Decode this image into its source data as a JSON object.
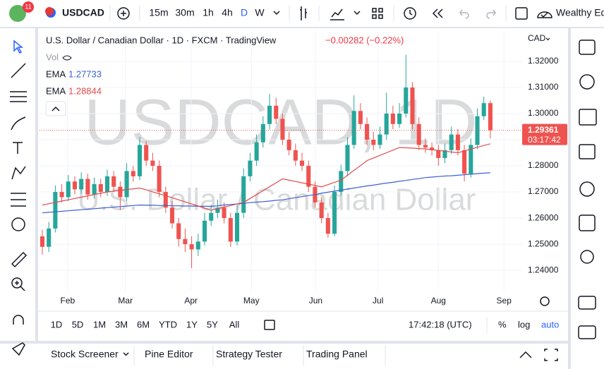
{
  "toolbar": {
    "badge": "11",
    "symbol": "USDCAD",
    "intervals": [
      "15m",
      "30m",
      "1h",
      "4h",
      "D",
      "W"
    ],
    "layout_name": "Wealthy Ed"
  },
  "legend": {
    "title": "U.S. Dollar / Canadian Dollar · 1D · FXCM · TradingView",
    "change": "−0.00282 (−0.22%)",
    "vol": "Vol",
    "ema_label": "EMA"
  },
  "currency": "CAD",
  "watermark": {
    "symbol": "USDCAD, 1D",
    "name": "U.S. Dollar / Canadian Dollar"
  },
  "countdown": "03:17:42",
  "ranges": [
    "1D",
    "5D",
    "1M",
    "3M",
    "6M",
    "YTD",
    "1Y",
    "5Y",
    "All"
  ],
  "clock": "17:42:18 (UTC)",
  "scale_options": [
    "%",
    "log",
    "auto"
  ],
  "tabs": [
    "Stock Screener",
    "Pine Editor",
    "Strategy Tester",
    "Trading Panel"
  ],
  "chart_data": {
    "type": "candlestick",
    "up_color": "#26a69a",
    "down_color": "#ef5350",
    "grid": true,
    "xlim": [
      -0.43,
      73.9
    ],
    "xticks": [
      {
        "value": 3.9,
        "label": "Feb"
      },
      {
        "value": 12.8,
        "label": "Mar"
      },
      {
        "value": 22.9,
        "label": "Apr"
      },
      {
        "value": 32.2,
        "label": "May"
      },
      {
        "value": 42.1,
        "label": "Jun"
      },
      {
        "value": 51.7,
        "label": "Jul"
      },
      {
        "value": 61.0,
        "label": "Aug"
      },
      {
        "value": 71.1,
        "label": "Sep"
      }
    ],
    "ylim": [
      1.2322,
      1.3316
    ],
    "yticks": [
      {
        "value": 1.24,
        "label": "1.24000"
      },
      {
        "value": 1.25,
        "label": "1.25000"
      },
      {
        "value": 1.26,
        "label": "1.26000"
      },
      {
        "value": 1.27,
        "label": "1.27000"
      },
      {
        "value": 1.28,
        "label": "1.28000"
      },
      {
        "value": 1.29,
        "label": "1.29000"
      },
      {
        "value": 1.3,
        "label": "1.30000"
      },
      {
        "value": 1.31,
        "label": "1.31000"
      },
      {
        "value": 1.32,
        "label": "1.32000"
      }
    ],
    "candles": [
      [
        1.253,
        1.2555,
        1.246,
        1.249
      ],
      [
        1.249,
        1.2585,
        1.247,
        1.256
      ],
      [
        1.256,
        1.2725,
        1.2545,
        1.27
      ],
      [
        1.27,
        1.273,
        1.266,
        1.268
      ],
      [
        1.268,
        1.2765,
        1.2665,
        1.274
      ],
      [
        1.274,
        1.276,
        1.269,
        1.271
      ],
      [
        1.271,
        1.2775,
        1.2695,
        1.275
      ],
      [
        1.275,
        1.277,
        1.267,
        1.269
      ],
      [
        1.269,
        1.2755,
        1.2675,
        1.273
      ],
      [
        1.273,
        1.275,
        1.268,
        1.27
      ],
      [
        1.27,
        1.2785,
        1.2685,
        1.276
      ],
      [
        1.276,
        1.278,
        1.27,
        1.272
      ],
      [
        1.272,
        1.274,
        1.263,
        1.268
      ],
      [
        1.268,
        1.281,
        1.2665,
        1.278
      ],
      [
        1.278,
        1.28,
        1.274,
        1.276
      ],
      [
        1.276,
        1.291,
        1.2745,
        1.288
      ],
      [
        1.288,
        1.2895,
        1.28,
        1.282
      ],
      [
        1.282,
        1.285,
        1.278,
        1.28
      ],
      [
        1.28,
        1.282,
        1.268,
        1.27
      ],
      [
        1.27,
        1.272,
        1.262,
        1.264
      ],
      [
        1.264,
        1.2665,
        1.256,
        1.258
      ],
      [
        1.258,
        1.26,
        1.249,
        1.252
      ],
      [
        1.252,
        1.256,
        1.247,
        1.25
      ],
      [
        1.25,
        1.253,
        1.2408,
        1.248
      ],
      [
        1.248,
        1.254,
        1.2455,
        1.251
      ],
      [
        1.251,
        1.262,
        1.2495,
        1.259
      ],
      [
        1.259,
        1.265,
        1.257,
        1.262
      ],
      [
        1.262,
        1.267,
        1.26,
        1.264
      ],
      [
        1.264,
        1.266,
        1.258,
        1.26
      ],
      [
        1.26,
        1.262,
        1.249,
        1.251
      ],
      [
        1.251,
        1.265,
        1.2495,
        1.262
      ],
      [
        1.262,
        1.279,
        1.26,
        1.276
      ],
      [
        1.276,
        1.285,
        1.274,
        1.282
      ],
      [
        1.282,
        1.292,
        1.28,
        1.289
      ],
      [
        1.289,
        1.299,
        1.287,
        1.296
      ],
      [
        1.296,
        1.3075,
        1.294,
        1.303
      ],
      [
        1.303,
        1.306,
        1.296,
        1.298
      ],
      [
        1.298,
        1.3,
        1.288,
        1.29
      ],
      [
        1.29,
        1.293,
        1.284,
        1.286
      ],
      [
        1.286,
        1.2885,
        1.28,
        1.282
      ],
      [
        1.282,
        1.285,
        1.278,
        1.28
      ],
      [
        1.28,
        1.282,
        1.27,
        1.272
      ],
      [
        1.272,
        1.274,
        1.264,
        1.266
      ],
      [
        1.266,
        1.268,
        1.258,
        1.26
      ],
      [
        1.26,
        1.262,
        1.2525,
        1.254
      ],
      [
        1.254,
        1.2725,
        1.253,
        1.27
      ],
      [
        1.27,
        1.2805,
        1.2685,
        1.278
      ],
      [
        1.278,
        1.291,
        1.276,
        1.288
      ],
      [
        1.288,
        1.307,
        1.2865,
        1.301
      ],
      [
        1.301,
        1.304,
        1.294,
        1.296
      ],
      [
        1.296,
        1.2985,
        1.288,
        1.29
      ],
      [
        1.29,
        1.293,
        1.286,
        1.288
      ],
      [
        1.288,
        1.295,
        1.2865,
        1.292
      ],
      [
        1.292,
        1.308,
        1.29,
        1.3
      ],
      [
        1.3,
        1.303,
        1.294,
        1.296
      ],
      [
        1.296,
        1.304,
        1.2945,
        1.3
      ],
      [
        1.3,
        1.3225,
        1.2985,
        1.31
      ],
      [
        1.31,
        1.312,
        1.294,
        1.296
      ],
      [
        1.296,
        1.2985,
        1.286,
        1.288
      ],
      [
        1.288,
        1.2905,
        1.285,
        1.287
      ],
      [
        1.287,
        1.289,
        1.284,
        1.286
      ],
      [
        1.286,
        1.288,
        1.28,
        1.283
      ],
      [
        1.283,
        1.2885,
        1.281,
        1.286
      ],
      [
        1.286,
        1.295,
        1.2845,
        1.292
      ],
      [
        1.292,
        1.294,
        1.284,
        1.286
      ],
      [
        1.286,
        1.288,
        1.274,
        1.277
      ],
      [
        1.277,
        1.2905,
        1.2755,
        1.288
      ],
      [
        1.288,
        1.302,
        1.2865,
        1.299
      ],
      [
        1.299,
        1.3065,
        1.2975,
        1.304
      ],
      [
        1.304,
        1.305,
        1.2905,
        1.29361
      ]
    ],
    "series": [
      {
        "color": "#3d5fd6",
        "values": [
          1.262,
          1.2622,
          1.2624,
          1.2626,
          1.2628,
          1.263,
          1.2632,
          1.2634,
          1.2636,
          1.2638,
          1.264,
          1.2642,
          1.2644,
          1.2646,
          1.2648,
          1.265,
          1.2649,
          1.2649,
          1.2648,
          1.2648,
          1.2647,
          1.2647,
          1.2646,
          1.2646,
          1.2645,
          1.2645,
          1.2645,
          1.2647,
          1.265,
          1.2652,
          1.2654,
          1.2656,
          1.2659,
          1.2661,
          1.2663,
          1.2665,
          1.2668,
          1.267,
          1.2674,
          1.2678,
          1.2682,
          1.2686,
          1.269,
          1.2695,
          1.2699,
          1.2703,
          1.2707,
          1.2711,
          1.2715,
          1.2719,
          1.2723,
          1.2726,
          1.273,
          1.2734,
          1.2737,
          1.2741,
          1.2744,
          1.2748,
          1.2751,
          1.2755,
          1.2757,
          1.2759,
          1.2761,
          1.2762,
          1.2764,
          1.2766,
          1.2768,
          1.277,
          1.2772,
          1.27733
        ]
      },
      {
        "color": "#e24b4b",
        "values": [
          1.265,
          1.2655,
          1.266,
          1.2665,
          1.267,
          1.2675,
          1.268,
          1.2685,
          1.269,
          1.2695,
          1.27,
          1.2703,
          1.2706,
          1.2709,
          1.2712,
          1.2715,
          1.2708,
          1.27,
          1.2693,
          1.2685,
          1.2678,
          1.267,
          1.2662,
          1.2654,
          1.2646,
          1.2638,
          1.263,
          1.2636,
          1.2642,
          1.2648,
          1.2654,
          1.266,
          1.2675,
          1.269,
          1.2705,
          1.272,
          1.2735,
          1.275,
          1.2745,
          1.274,
          1.2735,
          1.273,
          1.2725,
          1.272,
          1.2728,
          1.2737,
          1.2745,
          1.2764,
          1.2783,
          1.2801,
          1.282,
          1.283,
          1.284,
          1.285,
          1.286,
          1.287,
          1.2869,
          1.2868,
          1.2866,
          1.2865,
          1.2862,
          1.2859,
          1.2856,
          1.2853,
          1.285,
          1.2857,
          1.2864,
          1.2871,
          1.2878,
          1.28844
        ]
      }
    ]
  }
}
